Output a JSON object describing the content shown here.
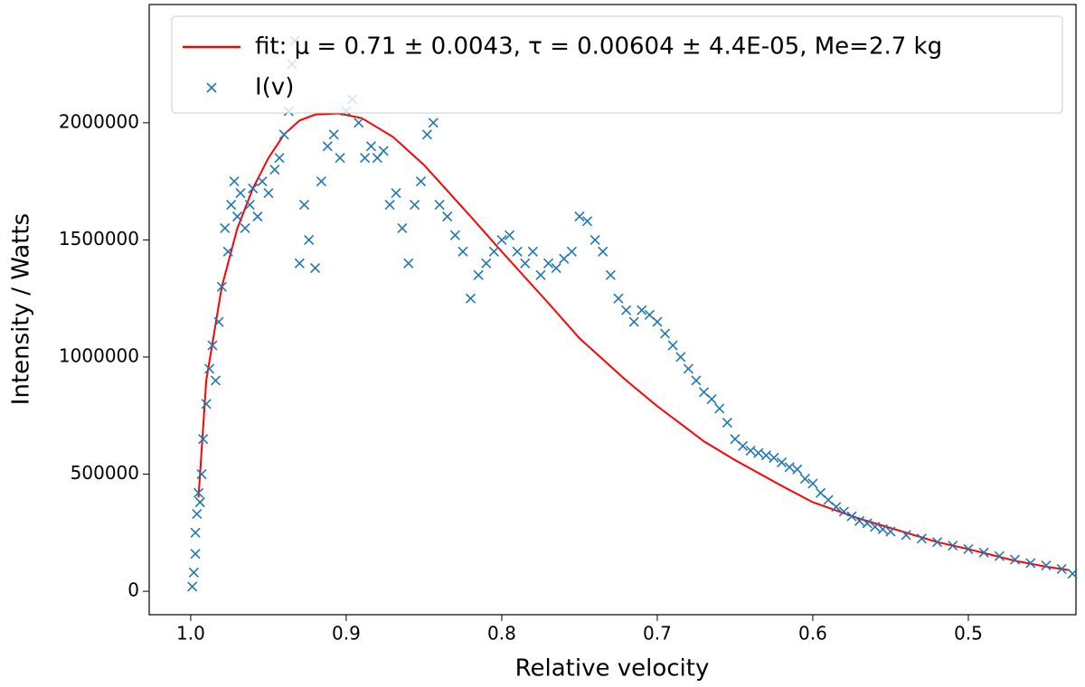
{
  "chart_data": {
    "type": "scatter",
    "xlabel": "Relative velocity",
    "ylabel": "Intensity / Watts",
    "xlim": [
      1.0267,
      0.4308
    ],
    "ylim": [
      -100000,
      2505000
    ],
    "xticks": [
      {
        "value": 1,
        "label": "1.0"
      },
      0.9,
      0.8,
      0.7,
      0.6,
      0.5
    ],
    "yticks": [
      0,
      500000,
      1000000,
      1500000,
      2000000
    ],
    "legend": "upper right",
    "grid": false,
    "series": [
      {
        "name": "fit: μ = 0.71 ± 0.0043, τ = 0.00604 ± 4.4E-05, Me=2.7 kg",
        "type": "line",
        "color": "#ff0000",
        "x": [
          0.995,
          0.99,
          0.98,
          0.97,
          0.96,
          0.95,
          0.94,
          0.93,
          0.92,
          0.905,
          0.89,
          0.87,
          0.85,
          0.82,
          0.8,
          0.77,
          0.75,
          0.72,
          0.7,
          0.67,
          0.65,
          0.62,
          0.6,
          0.57,
          0.55,
          0.52,
          0.5,
          0.47,
          0.45,
          0.435
        ],
        "values": [
          400000,
          900000,
          1300000,
          1550000,
          1720000,
          1850000,
          1950000,
          2010000,
          2035000,
          2040000,
          2020000,
          1940000,
          1820000,
          1600000,
          1450000,
          1230000,
          1080000,
          900000,
          790000,
          640000,
          560000,
          450000,
          380000,
          310000,
          270000,
          210000,
          180000,
          130000,
          105000,
          90000
        ]
      },
      {
        "name": "I(v)",
        "type": "scatter",
        "color": "#1f77b4",
        "x": [
          0.999,
          0.998,
          0.997,
          0.997,
          0.996,
          0.995,
          0.994,
          0.993,
          0.992,
          0.99,
          0.988,
          0.986,
          0.984,
          0.982,
          0.98,
          0.978,
          0.976,
          0.974,
          0.972,
          0.97,
          0.968,
          0.965,
          0.962,
          0.96,
          0.957,
          0.954,
          0.95,
          0.946,
          0.943,
          0.94,
          0.937,
          0.935,
          0.933,
          0.93,
          0.927,
          0.924,
          0.92,
          0.916,
          0.912,
          0.908,
          0.904,
          0.9,
          0.896,
          0.892,
          0.888,
          0.884,
          0.88,
          0.876,
          0.872,
          0.868,
          0.864,
          0.86,
          0.856,
          0.852,
          0.848,
          0.844,
          0.84,
          0.835,
          0.83,
          0.825,
          0.82,
          0.815,
          0.81,
          0.805,
          0.8,
          0.795,
          0.79,
          0.785,
          0.78,
          0.775,
          0.77,
          0.765,
          0.76,
          0.755,
          0.75,
          0.745,
          0.74,
          0.735,
          0.73,
          0.725,
          0.72,
          0.715,
          0.71,
          0.705,
          0.7,
          0.695,
          0.69,
          0.685,
          0.68,
          0.675,
          0.67,
          0.665,
          0.66,
          0.655,
          0.65,
          0.645,
          0.64,
          0.635,
          0.63,
          0.625,
          0.62,
          0.615,
          0.61,
          0.605,
          0.6,
          0.595,
          0.59,
          0.585,
          0.58,
          0.575,
          0.57,
          0.565,
          0.56,
          0.555,
          0.55,
          0.54,
          0.53,
          0.52,
          0.51,
          0.5,
          0.49,
          0.48,
          0.47,
          0.46,
          0.45,
          0.44,
          0.433
        ],
        "values": [
          20000,
          80000,
          160000,
          250000,
          330000,
          420000,
          380000,
          500000,
          650000,
          800000,
          950000,
          1050000,
          900000,
          1150000,
          1300000,
          1550000,
          1450000,
          1650000,
          1750000,
          1600000,
          1700000,
          1550000,
          1650000,
          1720000,
          1600000,
          1750000,
          1700000,
          1800000,
          1850000,
          1950000,
          2050000,
          2250000,
          2350000,
          1400000,
          1650000,
          1500000,
          1380000,
          1750000,
          1900000,
          1950000,
          1850000,
          2050000,
          2100000,
          2000000,
          1850000,
          1900000,
          1850000,
          1880000,
          1650000,
          1700000,
          1550000,
          1400000,
          1650000,
          1750000,
          1950000,
          2000000,
          1650000,
          1600000,
          1520000,
          1450000,
          1250000,
          1350000,
          1400000,
          1450000,
          1500000,
          1520000,
          1450000,
          1400000,
          1450000,
          1350000,
          1400000,
          1380000,
          1420000,
          1450000,
          1600000,
          1580000,
          1500000,
          1450000,
          1350000,
          1250000,
          1200000,
          1150000,
          1200000,
          1180000,
          1150000,
          1100000,
          1050000,
          1000000,
          950000,
          900000,
          850000,
          820000,
          780000,
          720000,
          650000,
          620000,
          600000,
          590000,
          580000,
          570000,
          550000,
          530000,
          520000,
          480000,
          460000,
          420000,
          390000,
          360000,
          340000,
          320000,
          300000,
          290000,
          275000,
          265000,
          255000,
          240000,
          225000,
          210000,
          195000,
          180000,
          165000,
          150000,
          135000,
          120000,
          110000,
          95000,
          75000
        ]
      }
    ]
  }
}
